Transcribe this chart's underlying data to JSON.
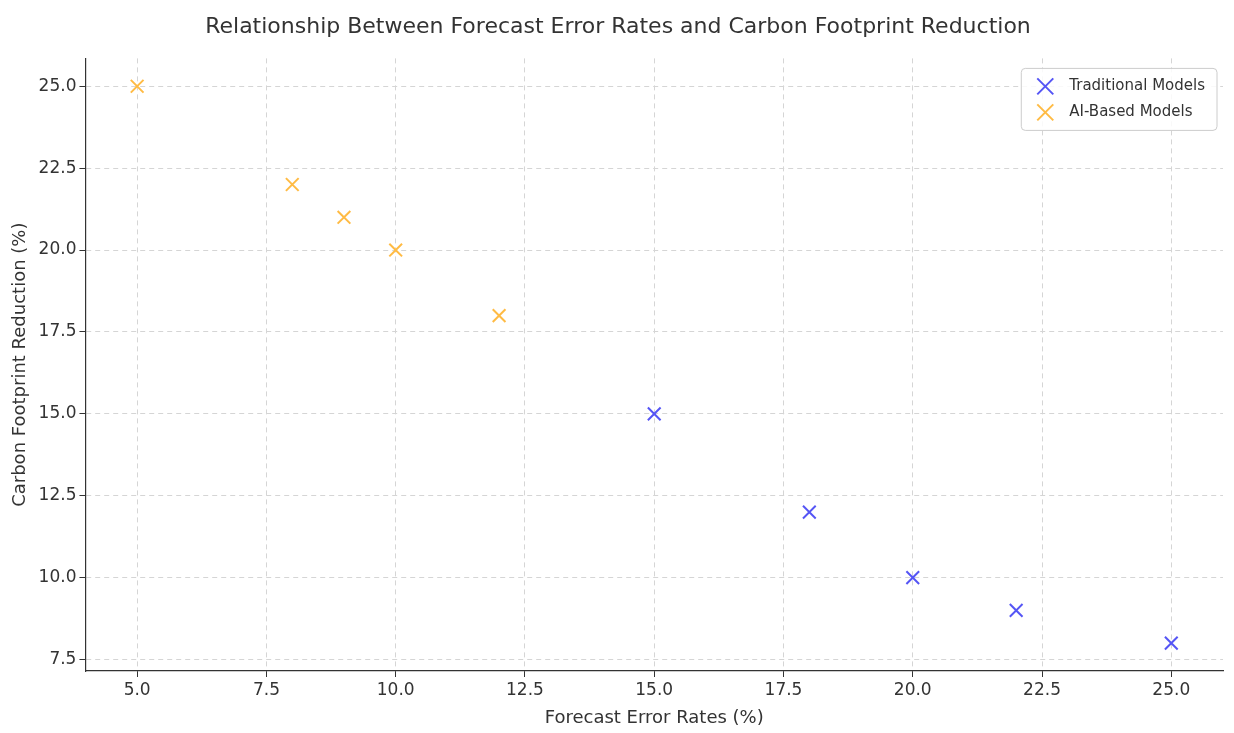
{
  "chart_data": {
    "type": "scatter",
    "title": "Relationship Between Forecast Error Rates and Carbon Footprint Reduction",
    "xlabel": "Forecast Error Rates (%)",
    "ylabel": "Carbon Footprint Reduction (%)",
    "series": [
      {
        "name": "Traditional Models",
        "color": "#5555f5",
        "x": [
          15,
          18,
          20,
          22,
          25
        ],
        "values": [
          15,
          12,
          10,
          9,
          8
        ]
      },
      {
        "name": "AI-Based Models",
        "color": "#ffbb44",
        "x": [
          5,
          8,
          9,
          10,
          12
        ],
        "values": [
          25,
          22,
          21,
          20,
          18
        ]
      }
    ],
    "xlim": [
      4,
      26
    ],
    "ylim": [
      7.15,
      25.85
    ],
    "xticks": [
      {
        "value": 5,
        "label": "5.0"
      },
      {
        "value": 7.5,
        "label": "7.5"
      },
      {
        "value": 10,
        "label": "10.0"
      },
      {
        "value": 12.5,
        "label": "12.5"
      },
      {
        "value": 15,
        "label": "15.0"
      },
      {
        "value": 17.5,
        "label": "17.5"
      },
      {
        "value": 20,
        "label": "20.0"
      },
      {
        "value": 22.5,
        "label": "22.5"
      },
      {
        "value": 25,
        "label": "25.0"
      }
    ],
    "yticks": [
      {
        "value": 7.5,
        "label": "7.5"
      },
      {
        "value": 10,
        "label": "10.0"
      },
      {
        "value": 12.5,
        "label": "12.5"
      },
      {
        "value": 15,
        "label": "15.0"
      },
      {
        "value": 17.5,
        "label": "17.5"
      },
      {
        "value": 20,
        "label": "20.0"
      },
      {
        "value": 22.5,
        "label": "22.5"
      },
      {
        "value": 25,
        "label": "25.0"
      }
    ],
    "grid": true,
    "legend": "top right",
    "marker": "cross"
  }
}
